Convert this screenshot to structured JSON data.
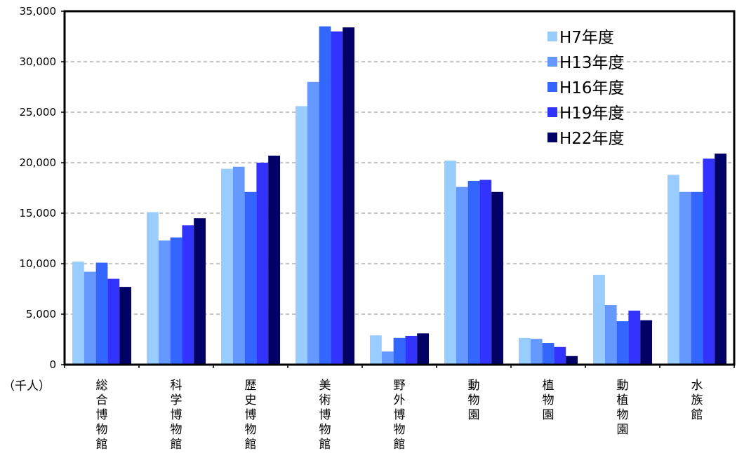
{
  "chart_data": {
    "type": "bar",
    "categories": [
      "総合博物館",
      "科学博物館",
      "歴史博物館",
      "美術博物館",
      "野外博物館",
      "動物園",
      "植物園",
      "動植物園",
      "水族館"
    ],
    "series": [
      {
        "name": "H7年度",
        "color": "#99ccff",
        "values": [
          10200,
          15100,
          19400,
          25600,
          2900,
          20200,
          2650,
          8900,
          18800
        ]
      },
      {
        "name": "H13年度",
        "color": "#6699ff",
        "values": [
          9200,
          12300,
          19600,
          28000,
          1300,
          17600,
          2550,
          5900,
          17100
        ]
      },
      {
        "name": "H16年度",
        "color": "#3366ff",
        "values": [
          10100,
          12600,
          17100,
          33500,
          2650,
          18200,
          2150,
          4300,
          17100
        ]
      },
      {
        "name": "H19年度",
        "color": "#3333ff",
        "values": [
          8500,
          13800,
          20000,
          33000,
          2850,
          18300,
          1750,
          5350,
          20400
        ]
      },
      {
        "name": "H22年度",
        "color": "#000066",
        "values": [
          7700,
          14500,
          20700,
          33400,
          3100,
          17100,
          850,
          4400,
          20900
        ]
      }
    ],
    "unit_label": "（千人）",
    "ylim": [
      0,
      35000
    ],
    "yticks": [
      "0",
      "5,000",
      "10,000",
      "15,000",
      "20,000",
      "25,000",
      "30,000",
      "35,000"
    ],
    "grid": true,
    "legend_position": "top-right"
  }
}
